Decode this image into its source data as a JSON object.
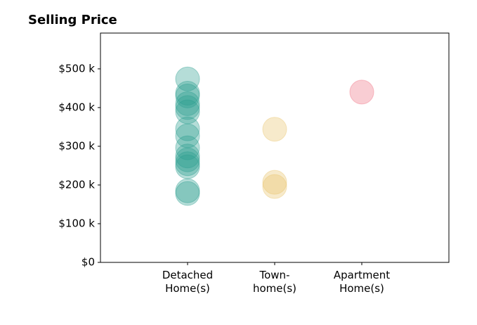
{
  "chart_data": {
    "type": "strip",
    "title": "Selling Price",
    "categories": [
      "Detached\nHome(s)",
      "Town-\nhome(s)",
      "Apartment\nHome(s)"
    ],
    "values": [
      [
        474000,
        437000,
        430000,
        410000,
        400000,
        389000,
        345000,
        327000,
        296000,
        275000,
        265000,
        255000,
        247000,
        185000,
        178000
      ],
      [
        344000,
        207000,
        196000
      ],
      [
        440000
      ]
    ],
    "colors": [
      "#2a9d8f",
      "#e9c46a",
      "#ef6f80"
    ],
    "xlim": [
      0,
      4
    ],
    "ylim": [
      0,
      592500
    ],
    "yticks": [
      {
        "value": 0,
        "label": "$0"
      },
      {
        "value": 100000,
        "label": "$100 k"
      },
      {
        "value": 200000,
        "label": "$200 k"
      },
      {
        "value": 300000,
        "label": "$300 k"
      },
      {
        "value": 400000,
        "label": "$400 k"
      },
      {
        "value": 500000,
        "label": "$500 k"
      }
    ],
    "grid": false
  }
}
